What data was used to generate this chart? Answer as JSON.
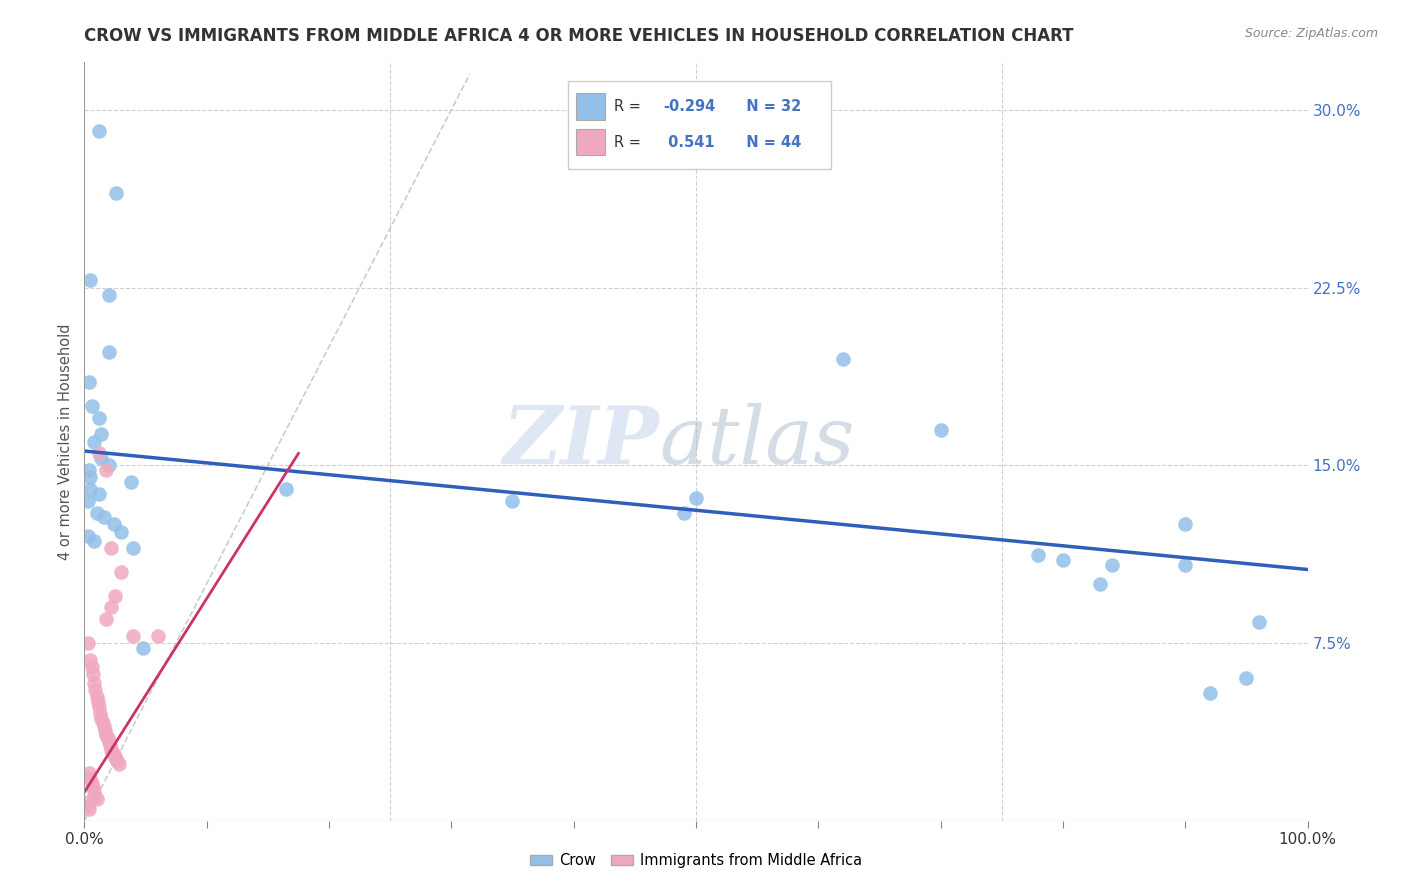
{
  "title": "CROW VS IMMIGRANTS FROM MIDDLE AFRICA 4 OR MORE VEHICLES IN HOUSEHOLD CORRELATION CHART",
  "source": "Source: ZipAtlas.com",
  "ylabel": "4 or more Vehicles in Household",
  "xlim": [
    0,
    1.0
  ],
  "ylim": [
    0,
    0.32
  ],
  "yticks_right": [
    0.075,
    0.15,
    0.225,
    0.3
  ],
  "yticklabels_right": [
    "7.5%",
    "15.0%",
    "22.5%",
    "30.0%"
  ],
  "crow_color": "#92c0e8",
  "immigrant_color": "#f0a8be",
  "trend_crow_color": "#2f5fbb",
  "trend_immigrant_color": "#cc3366",
  "watermark_zip": "ZIP",
  "watermark_atlas": "atlas",
  "crow_scatter": [
    [
      0.012,
      0.291
    ],
    [
      0.026,
      0.265
    ],
    [
      0.02,
      0.198
    ],
    [
      0.005,
      0.228
    ],
    [
      0.02,
      0.222
    ],
    [
      0.004,
      0.185
    ],
    [
      0.006,
      0.175
    ],
    [
      0.012,
      0.17
    ],
    [
      0.014,
      0.163
    ],
    [
      0.008,
      0.16
    ],
    [
      0.014,
      0.153
    ],
    [
      0.02,
      0.15
    ],
    [
      0.004,
      0.148
    ],
    [
      0.005,
      0.14
    ],
    [
      0.012,
      0.138
    ],
    [
      0.003,
      0.135
    ],
    [
      0.01,
      0.13
    ],
    [
      0.016,
      0.128
    ],
    [
      0.005,
      0.145
    ],
    [
      0.024,
      0.125
    ],
    [
      0.03,
      0.122
    ],
    [
      0.003,
      0.12
    ],
    [
      0.008,
      0.118
    ],
    [
      0.04,
      0.115
    ],
    [
      0.038,
      0.143
    ],
    [
      0.62,
      0.195
    ],
    [
      0.7,
      0.165
    ],
    [
      0.78,
      0.112
    ],
    [
      0.8,
      0.11
    ],
    [
      0.84,
      0.108
    ],
    [
      0.9,
      0.125
    ],
    [
      0.96,
      0.084
    ],
    [
      0.9,
      0.108
    ],
    [
      0.83,
      0.1
    ],
    [
      0.95,
      0.06
    ],
    [
      0.92,
      0.054
    ],
    [
      0.048,
      0.073
    ],
    [
      0.165,
      0.14
    ],
    [
      0.35,
      0.135
    ],
    [
      0.5,
      0.136
    ],
    [
      0.49,
      0.13
    ]
  ],
  "immigrant_scatter": [
    [
      0.003,
      0.075
    ],
    [
      0.005,
      0.068
    ],
    [
      0.006,
      0.065
    ],
    [
      0.007,
      0.062
    ],
    [
      0.008,
      0.058
    ],
    [
      0.009,
      0.055
    ],
    [
      0.01,
      0.052
    ],
    [
      0.011,
      0.05
    ],
    [
      0.012,
      0.048
    ],
    [
      0.013,
      0.045
    ],
    [
      0.014,
      0.043
    ],
    [
      0.015,
      0.041
    ],
    [
      0.016,
      0.04
    ],
    [
      0.017,
      0.038
    ],
    [
      0.018,
      0.036
    ],
    [
      0.019,
      0.035
    ],
    [
      0.02,
      0.033
    ],
    [
      0.021,
      0.032
    ],
    [
      0.022,
      0.03
    ],
    [
      0.023,
      0.029
    ],
    [
      0.024,
      0.028
    ],
    [
      0.025,
      0.027
    ],
    [
      0.026,
      0.026
    ],
    [
      0.027,
      0.025
    ],
    [
      0.028,
      0.024
    ],
    [
      0.004,
      0.02
    ],
    [
      0.005,
      0.018
    ],
    [
      0.006,
      0.016
    ],
    [
      0.007,
      0.014
    ],
    [
      0.008,
      0.012
    ],
    [
      0.009,
      0.01
    ],
    [
      0.01,
      0.009
    ],
    [
      0.003,
      0.008
    ],
    [
      0.003,
      0.006
    ],
    [
      0.004,
      0.005
    ],
    [
      0.03,
      0.105
    ],
    [
      0.025,
      0.095
    ],
    [
      0.022,
      0.09
    ],
    [
      0.018,
      0.085
    ],
    [
      0.06,
      0.078
    ],
    [
      0.018,
      0.148
    ],
    [
      0.022,
      0.115
    ],
    [
      0.04,
      0.078
    ],
    [
      0.012,
      0.155
    ]
  ],
  "crow_trend_x": [
    0.0,
    1.0
  ],
  "crow_trend_y": [
    0.156,
    0.106
  ],
  "immigrant_trend_x": [
    0.0,
    0.175
  ],
  "immigrant_trend_y": [
    0.012,
    0.155
  ],
  "diag_line_x": [
    0.0,
    0.315
  ],
  "diag_line_y": [
    0.0,
    0.315
  ]
}
